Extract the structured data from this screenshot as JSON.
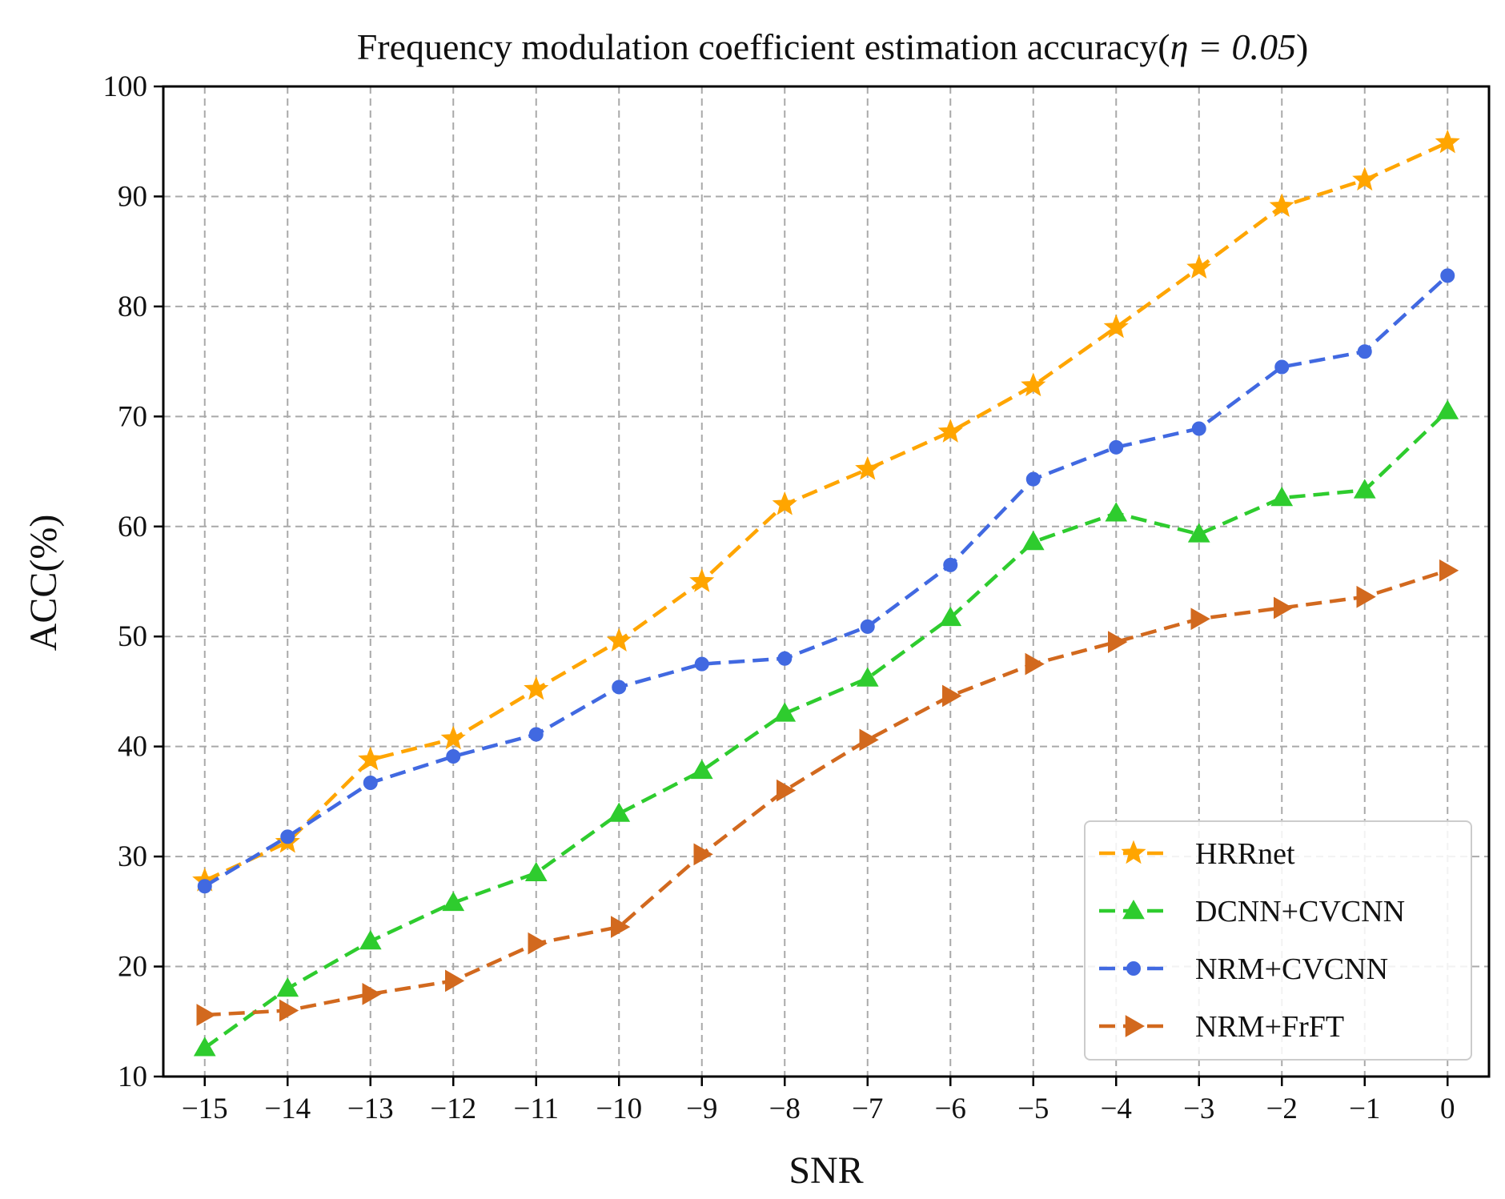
{
  "chart_data": {
    "type": "line",
    "title": "Frequency modulation coefficient estimation accuracy(",
    "title_math": "η = 0.05",
    "title_close": ")",
    "xlabel": "SNR",
    "ylabel": "ACC(%)",
    "x": [
      -15,
      -14,
      -13,
      -12,
      -11,
      -10,
      -9,
      -8,
      -7,
      -6,
      -5,
      -4,
      -3,
      -2,
      -1,
      0
    ],
    "x_tick_labels": [
      "−15",
      "−14",
      "−13",
      "−12",
      "−11",
      "−10",
      "−9",
      "−8",
      "−7",
      "−6",
      "−5",
      "−4",
      "−3",
      "−2",
      "−1",
      "0"
    ],
    "xlim": [
      -15.5,
      0.5
    ],
    "ylim": [
      10,
      100
    ],
    "y_ticks": [
      10,
      20,
      30,
      40,
      50,
      60,
      70,
      80,
      90,
      100
    ],
    "y_tick_labels": [
      "10",
      "20",
      "30",
      "40",
      "50",
      "60",
      "70",
      "80",
      "90",
      "100"
    ],
    "grid": true,
    "legend_position": "lower-right",
    "series": [
      {
        "name": "HRRnet",
        "color": "#FFA500",
        "marker": "star",
        "values": [
          27.8,
          31.3,
          38.8,
          40.7,
          45.2,
          49.6,
          55.0,
          62.0,
          65.2,
          68.6,
          72.8,
          78.1,
          83.5,
          89.1,
          91.5,
          94.9
        ]
      },
      {
        "name": "DCNN+CVCNN",
        "color": "#2ECC2E",
        "marker": "triangle-up",
        "values": [
          12.6,
          18.0,
          22.3,
          25.8,
          28.5,
          33.9,
          37.8,
          43.0,
          46.2,
          51.7,
          58.6,
          61.2,
          59.3,
          62.6,
          63.3,
          70.5
        ]
      },
      {
        "name": "NRM+CVCNN",
        "color": "#4169E1",
        "marker": "circle",
        "values": [
          27.3,
          31.8,
          36.7,
          39.1,
          41.1,
          45.4,
          47.5,
          48.0,
          50.9,
          56.5,
          64.3,
          67.2,
          68.9,
          74.5,
          75.9,
          82.8
        ]
      },
      {
        "name": "NRM+FrFT",
        "color": "#D2691E",
        "marker": "triangle-right",
        "values": [
          15.6,
          16.0,
          17.5,
          18.7,
          22.1,
          23.6,
          30.2,
          36.0,
          40.6,
          44.6,
          47.5,
          49.5,
          51.6,
          52.6,
          53.6,
          56.0
        ]
      }
    ]
  }
}
